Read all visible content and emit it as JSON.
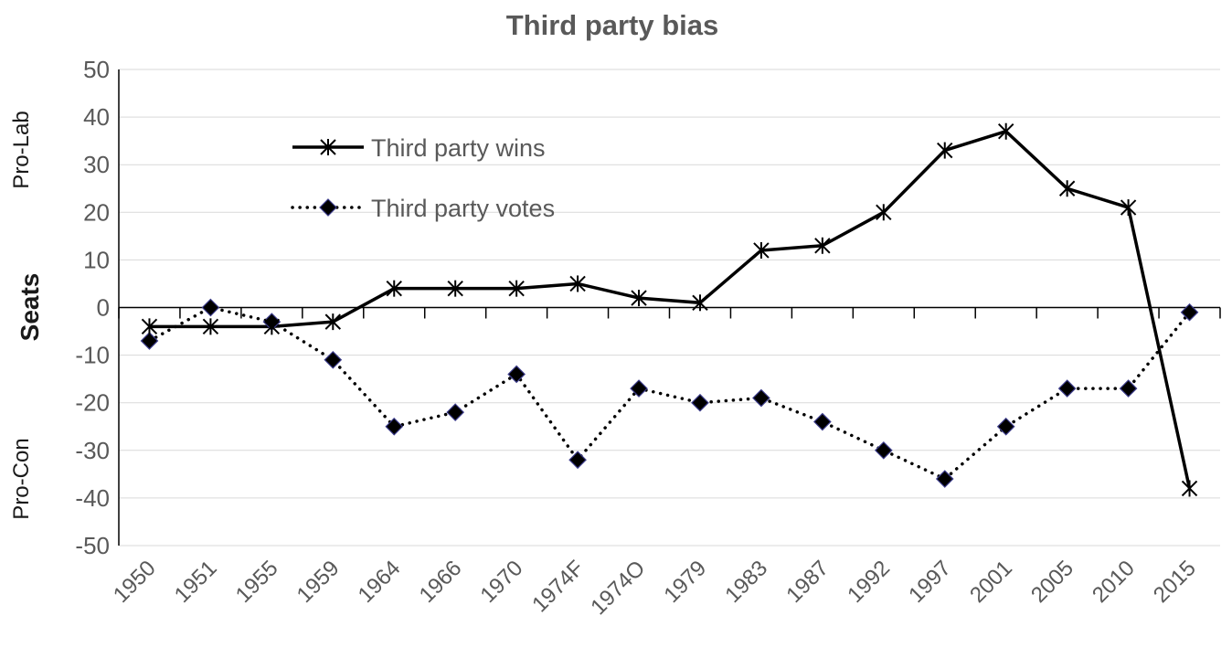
{
  "chart_data": {
    "type": "line",
    "title": "Third party bias",
    "ylabel": "Seats",
    "ylabel_top": "Pro-Lab",
    "ylabel_bottom": "Pro-Con",
    "xlabel": "",
    "ylim": [
      -50,
      50
    ],
    "yticks": [
      50,
      40,
      30,
      20,
      10,
      0,
      -10,
      -20,
      -30,
      -40,
      -50
    ],
    "grid": true,
    "legend_position": "top-left",
    "categories": [
      "1950",
      "1951",
      "1955",
      "1959",
      "1964",
      "1966",
      "1970",
      "1974F",
      "1974O",
      "1979",
      "1983",
      "1987",
      "1992",
      "1997",
      "2001",
      "2005",
      "2010",
      "2015"
    ],
    "series": [
      {
        "name": "Third party wins",
        "style": "solid",
        "marker": "star",
        "color": "#000000",
        "values": [
          -4,
          -4,
          -4,
          -3,
          4,
          4,
          4,
          5,
          2,
          1,
          12,
          13,
          20,
          33,
          37,
          25,
          21,
          -38
        ]
      },
      {
        "name": "Third party votes",
        "style": "dotted",
        "marker": "diamond",
        "color": "#000000",
        "values": [
          -7,
          0,
          -3,
          -11,
          -25,
          -22,
          -14,
          -32,
          -17,
          -20,
          -19,
          -24,
          -30,
          -36,
          -25,
          -17,
          -17,
          -1
        ]
      }
    ]
  }
}
